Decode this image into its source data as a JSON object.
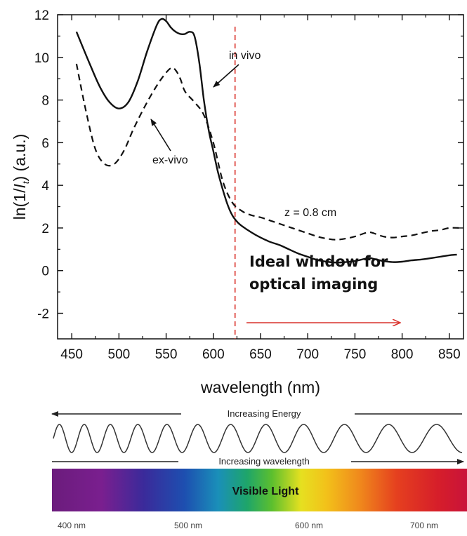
{
  "chart_data": {
    "type": "line",
    "ylabel": "ln(1/I_t)  (a.u.)",
    "xlabel": "wavelength (nm)",
    "xlim": [
      435,
      865
    ],
    "ylim": [
      -3.2,
      12
    ],
    "x_ticks": [
      450,
      500,
      550,
      600,
      650,
      700,
      750,
      800,
      850
    ],
    "x_tick_labels": [
      "450",
      "500",
      "550",
      "600",
      "650",
      "700",
      "750",
      "800",
      "850"
    ],
    "y_ticks": [
      -2,
      0,
      2,
      4,
      6,
      8,
      10,
      12
    ],
    "y_tick_labels": [
      "-2",
      "0",
      "2",
      "4",
      "6",
      "8",
      "10",
      "12"
    ],
    "series": [
      {
        "name": "in vivo",
        "style": "solid",
        "x": [
          455,
          470,
          480,
          490,
          500,
          510,
          520,
          530,
          540,
          545,
          550,
          555,
          560,
          565,
          570,
          575,
          580,
          585,
          590,
          595,
          600,
          605,
          610,
          615,
          620,
          625,
          630,
          640,
          650,
          660,
          670,
          680,
          690,
          700,
          710,
          720,
          730,
          740,
          750,
          760,
          765,
          770,
          780,
          790,
          800,
          810,
          820,
          830,
          840,
          850,
          858
        ],
        "y": [
          11.2,
          9.6,
          8.6,
          7.9,
          7.6,
          7.9,
          8.9,
          10.3,
          11.5,
          11.8,
          11.7,
          11.4,
          11.2,
          11.1,
          11.1,
          11.2,
          11.0,
          9.8,
          8.0,
          6.6,
          5.6,
          4.6,
          3.8,
          3.1,
          2.6,
          2.3,
          2.1,
          1.8,
          1.55,
          1.35,
          1.2,
          1.0,
          0.8,
          0.65,
          0.5,
          0.42,
          0.38,
          0.4,
          0.45,
          0.55,
          0.6,
          0.55,
          0.45,
          0.4,
          0.42,
          0.48,
          0.52,
          0.58,
          0.65,
          0.72,
          0.75
        ]
      },
      {
        "name": "ex-vivo",
        "style": "dashed",
        "x": [
          455,
          465,
          475,
          485,
          495,
          505,
          515,
          525,
          535,
          545,
          555,
          560,
          565,
          570,
          580,
          590,
          600,
          610,
          620,
          630,
          640,
          650,
          660,
          670,
          680,
          690,
          700,
          710,
          720,
          730,
          740,
          750,
          760,
          765,
          770,
          780,
          790,
          800,
          810,
          820,
          830,
          840,
          850,
          860
        ],
        "y": [
          9.7,
          7.5,
          5.7,
          5.0,
          5.0,
          5.6,
          6.6,
          7.5,
          8.3,
          9.0,
          9.5,
          9.4,
          9.0,
          8.4,
          7.9,
          7.3,
          6.0,
          4.2,
          3.2,
          2.8,
          2.6,
          2.5,
          2.35,
          2.2,
          2.05,
          1.9,
          1.75,
          1.6,
          1.5,
          1.45,
          1.5,
          1.6,
          1.75,
          1.8,
          1.75,
          1.6,
          1.55,
          1.6,
          1.65,
          1.75,
          1.85,
          1.9,
          2.0,
          2.0
        ]
      }
    ],
    "reference_line": {
      "x": 623,
      "color": "#d9322b",
      "style": "dashed"
    },
    "annotations": {
      "in_vivo": "in vivo",
      "ex_vivo": "ex-vivo",
      "depth": "z = 0.8 cm",
      "window_line1": "Ideal window for",
      "window_line2": "optical imaging"
    },
    "grid": false
  },
  "spectrum": {
    "energy_label": "Increasing Energy",
    "wavelength_label": "Increasing wavelength",
    "visible_label": "Visible Light",
    "tick_labels": [
      "400 nm",
      "500 nm",
      "600 nm",
      "700 nm"
    ]
  },
  "colors": {
    "reference_line": "#d9322b",
    "arrow": "#d9322b"
  }
}
